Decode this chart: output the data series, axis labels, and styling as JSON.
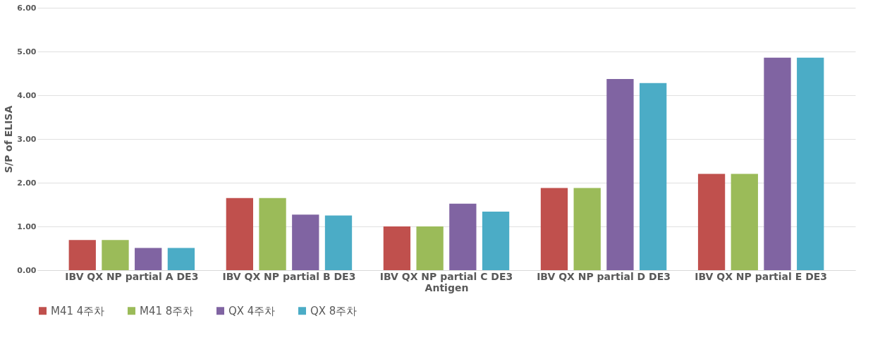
{
  "chart_data": {
    "type": "bar",
    "xlabel": "Antigen",
    "ylabel": "S/P of ELISA",
    "categories": [
      "IBV QX NP partial A DE3",
      "IBV QX NP partial B DE3",
      "IBV QX NP partial C DE3",
      "IBV QX NP partial D DE3",
      "IBV QX NP partial E DE3"
    ],
    "series": [
      {
        "name": "M41 4주차",
        "color": "#c0504d",
        "values": [
          0.69,
          1.65,
          1.0,
          1.88,
          2.2
        ]
      },
      {
        "name": "M41 8주차",
        "color": "#9bbb59",
        "values": [
          0.69,
          1.65,
          1.0,
          1.88,
          2.2
        ]
      },
      {
        "name": "QX 4주차",
        "color": "#8064a2",
        "values": [
          0.51,
          1.27,
          1.52,
          4.37,
          4.86
        ]
      },
      {
        "name": "QX 8주차",
        "color": "#4bacc6",
        "values": [
          0.51,
          1.25,
          1.34,
          4.28,
          4.86
        ]
      }
    ],
    "ylim": [
      0,
      6
    ],
    "yticks": [
      {
        "value": 0,
        "label": "0.00"
      },
      {
        "value": 1,
        "label": "1.00"
      },
      {
        "value": 2,
        "label": "2.00"
      },
      {
        "value": 3,
        "label": "3.00"
      },
      {
        "value": 4,
        "label": "4.00"
      },
      {
        "value": 5,
        "label": "5.00"
      },
      {
        "value": 6,
        "label": "6.00"
      }
    ],
    "grid": "y",
    "legend": "bottom"
  }
}
